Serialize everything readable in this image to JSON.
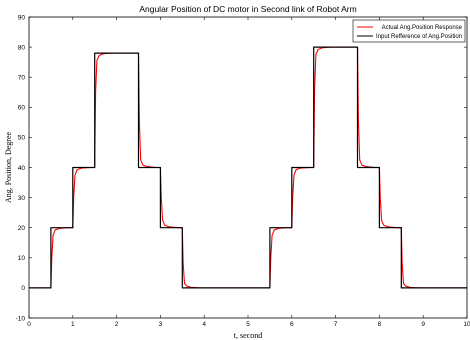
{
  "chart_data": {
    "type": "line",
    "title": "Angular Position of DC motor in Second link of Robot Arm",
    "xlabel": "t, second",
    "ylabel": "Ang. Position, Degree",
    "xlim": [
      0,
      10
    ],
    "ylim": [
      -10,
      90
    ],
    "xticks": [
      "0",
      "1",
      "2",
      "3",
      "4",
      "5",
      "6",
      "7",
      "8",
      "9",
      "10"
    ],
    "yticks": [
      "-10",
      "0",
      "10",
      "20",
      "30",
      "40",
      "50",
      "60",
      "70",
      "80",
      "90"
    ],
    "grid": false,
    "legend_position": "top-right",
    "series": [
      {
        "name": "Actual Ang.Position Response",
        "color": "#ff0000",
        "x": [
          0,
          0.5,
          0.52,
          0.55,
          0.6,
          0.7,
          0.9,
          1.0,
          1.02,
          1.05,
          1.1,
          1.2,
          1.4,
          1.5,
          1.52,
          1.55,
          1.6,
          1.7,
          1.9,
          2.5,
          2.52,
          2.55,
          2.6,
          2.7,
          2.9,
          3.0,
          3.02,
          3.05,
          3.1,
          3.2,
          3.4,
          3.5,
          3.52,
          3.55,
          3.6,
          3.7,
          3.9,
          5.5,
          5.52,
          5.55,
          5.6,
          5.7,
          5.9,
          6.0,
          6.02,
          6.05,
          6.1,
          6.2,
          6.4,
          6.5,
          6.52,
          6.55,
          6.6,
          6.7,
          6.9,
          7.5,
          7.52,
          7.55,
          7.6,
          7.7,
          7.9,
          8.0,
          8.02,
          8.05,
          8.1,
          8.2,
          8.4,
          8.5,
          8.52,
          8.55,
          8.6,
          8.7,
          8.9,
          10.0
        ],
        "y": [
          0,
          0,
          10,
          17.5,
          19.3,
          19.8,
          20,
          20,
          30,
          37.5,
          39.3,
          39.8,
          40,
          40,
          65,
          75.5,
          77.2,
          77.8,
          78,
          78,
          55,
          42.5,
          40.8,
          40.3,
          40,
          40,
          30,
          22.5,
          20.8,
          20.3,
          20,
          20,
          8,
          1.5,
          0.6,
          0.2,
          0,
          0,
          10,
          17.5,
          19.3,
          19.8,
          20,
          20,
          30,
          37.5,
          39.3,
          39.8,
          40,
          40,
          66,
          77.5,
          79.2,
          79.8,
          80,
          80,
          56,
          42.5,
          40.8,
          40.3,
          40,
          40,
          30,
          22.5,
          20.8,
          20.3,
          20,
          20,
          8,
          1.5,
          0.6,
          0.2,
          0,
          0
        ]
      },
      {
        "name": "Input Refference of Ang.Position",
        "color": "#000000",
        "x": [
          0,
          0.5,
          0.5,
          1.0,
          1.0,
          1.5,
          1.5,
          2.5,
          2.5,
          3.0,
          3.0,
          3.5,
          3.5,
          5.5,
          5.5,
          6.0,
          6.0,
          6.5,
          6.5,
          7.5,
          7.5,
          8.0,
          8.0,
          8.5,
          8.5,
          10.0
        ],
        "y": [
          0,
          0,
          20,
          20,
          40,
          40,
          78,
          78,
          40,
          40,
          20,
          20,
          0,
          0,
          20,
          20,
          40,
          40,
          80,
          80,
          40,
          40,
          20,
          20,
          0,
          0
        ]
      }
    ]
  }
}
